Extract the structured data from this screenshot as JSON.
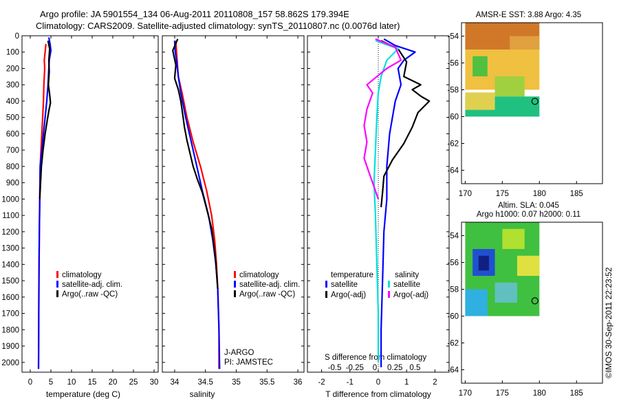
{
  "header": {
    "line1": "Argo profile: JA 5901554_134 06-Aug-2011 20110808_157 58.862S 179.394E",
    "line2": "Climatology: CARS2009. Satellite-adjusted climatology: synTS_20110807.nc (0.0076d later)"
  },
  "depth_ticks": [
    0,
    100,
    200,
    300,
    400,
    500,
    600,
    700,
    800,
    900,
    1000,
    1100,
    1200,
    1300,
    1400,
    1500,
    1600,
    1700,
    1800,
    1900,
    2000
  ],
  "chart_data": [
    {
      "type": "line",
      "xlabel": "temperature (deg C)",
      "xlim": [
        -2,
        31
      ],
      "ylim": [
        2060,
        0
      ],
      "xticks": [
        0,
        5,
        10,
        15,
        20,
        25,
        30
      ],
      "legend": {
        "placement": "lower-center",
        "entries": [
          "climatology",
          "satellite-adj. clim.",
          "Argo(..raw -QC)"
        ]
      },
      "series": [
        {
          "name": "climatology",
          "color": "#ff0000",
          "x": [
            3.8,
            3.6,
            3.4,
            3.5,
            3.3,
            3.2,
            3.0,
            2.8,
            2.6,
            2.4,
            2.3,
            2.2,
            2.1,
            2.05,
            2.0
          ],
          "y": [
            50,
            100,
            150,
            200,
            300,
            400,
            500,
            600,
            700,
            800,
            1000,
            1200,
            1500,
            1800,
            2040
          ]
        },
        {
          "name": "satellite-adj. clim.",
          "color": "#0000ff",
          "x": [
            4.5,
            4.8,
            5.0,
            4.6,
            4.5,
            4.3,
            4.0,
            3.6,
            3.2,
            2.8,
            2.4,
            2.3,
            2.2,
            2.1,
            2.05,
            2.0
          ],
          "y": [
            10,
            50,
            90,
            150,
            200,
            300,
            400,
            500,
            600,
            700,
            800,
            1000,
            1200,
            1500,
            1800,
            2040
          ]
        },
        {
          "name": "Argo(..raw -QC)",
          "color": "#000000",
          "x": [
            4.3,
            4.7,
            4.5,
            4.6,
            4.4,
            4.7,
            4.9,
            4.5,
            4.1,
            3.6,
            3.1,
            2.7,
            2.5,
            2.3
          ],
          "y": [
            30,
            80,
            150,
            220,
            300,
            360,
            410,
            460,
            520,
            600,
            700,
            800,
            900,
            1000
          ]
        }
      ]
    },
    {
      "type": "line",
      "xlabel": "salinity",
      "xlim": [
        33.8,
        36.1
      ],
      "ylim": [
        2060,
        0
      ],
      "xticks": [
        34,
        34.5,
        35,
        35.5,
        36
      ],
      "xtick_labels": [
        "34",
        "34.5",
        "35",
        "35.5",
        "36"
      ],
      "legend": {
        "placement": "lower-center",
        "entries": [
          "climatology",
          "satellite-adj. clim.",
          "Argo(..raw -QC)"
        ]
      },
      "annotations": [
        "J-ARGO",
        "PI: JAMSTEC"
      ],
      "series": [
        {
          "name": "climatology",
          "color": "#ff0000",
          "x": [
            34.02,
            34.03,
            34.04,
            34.06,
            34.12,
            34.2,
            34.3,
            34.42,
            34.52,
            34.6,
            34.65,
            34.68,
            34.7,
            34.72,
            34.72
          ],
          "y": [
            30,
            100,
            150,
            250,
            350,
            500,
            650,
            800,
            950,
            1100,
            1250,
            1400,
            1550,
            1800,
            2040
          ]
        },
        {
          "name": "satellite-adj. clim.",
          "color": "#0000ff",
          "x": [
            34.0,
            34.01,
            34.03,
            34.06,
            34.1,
            34.18,
            34.27,
            34.36,
            34.45,
            34.55,
            34.62,
            34.67,
            34.7,
            34.72,
            34.73
          ],
          "y": [
            30,
            100,
            150,
            250,
            350,
            500,
            650,
            800,
            950,
            1100,
            1250,
            1400,
            1550,
            1800,
            2040
          ]
        },
        {
          "name": "Argo(..raw -QC)",
          "color": "#000000",
          "x": [
            34.05,
            33.97,
            34.02,
            34.0,
            34.06,
            34.1,
            34.13,
            34.16,
            34.2,
            34.25,
            34.3,
            34.37,
            34.45,
            34.52,
            34.6,
            34.66,
            34.7
          ],
          "y": [
            20,
            90,
            180,
            260,
            330,
            400,
            480,
            560,
            640,
            720,
            800,
            880,
            960,
            1060,
            1180,
            1350,
            1550
          ]
        }
      ]
    },
    {
      "type": "line",
      "xlabel": "T difference from climatology",
      "secondary_xlabel": "S difference from climatology",
      "xlim": [
        -2.5,
        2.5
      ],
      "ylim": [
        2060,
        0
      ],
      "xticks": [
        -2,
        -1,
        0,
        1,
        2
      ],
      "secondary_xticks": [
        -0.5,
        -0.25,
        0,
        0.25,
        0.5
      ],
      "secondary_xtick_labels": [
        "-0.5",
        "-0.25",
        "0",
        "0.25",
        "0.5"
      ],
      "legend": {
        "placement": "lower-center",
        "headings": [
          "temperature",
          "salinity"
        ],
        "entries": [
          "satellite",
          "Argo(-adj)",
          "satellite",
          "Argo(-adj)"
        ]
      },
      "series": [
        {
          "name": "satellite",
          "group": "temperature",
          "color": "#0000ff",
          "x": [
            0.2,
            0.6,
            1.3,
            0.9,
            0.7,
            0.8,
            0.6,
            0.5,
            0.4,
            0.3,
            0.3,
            0.2,
            0.15,
            0.1,
            0.1
          ],
          "y": [
            20,
            60,
            100,
            150,
            200,
            300,
            400,
            500,
            600,
            800,
            1000,
            1200,
            1500,
            1800,
            2030
          ]
        },
        {
          "name": "Argo(-adj)",
          "group": "temperature",
          "color": "#000000",
          "x": [
            0.1,
            0.7,
            1.0,
            0.9,
            1.5,
            1.2,
            1.5,
            1.8,
            1.4,
            1.2,
            0.9,
            0.5,
            0.2,
            0.15,
            0.1
          ],
          "y": [
            30,
            80,
            160,
            250,
            300,
            330,
            370,
            400,
            470,
            560,
            660,
            760,
            860,
            960,
            1050
          ]
        },
        {
          "name": "satellite",
          "group": "salinity",
          "color": "#00e0e0",
          "x": [
            -0.1,
            0.7,
            0.3,
            0.1,
            0.0,
            -0.05,
            -0.1,
            -0.15,
            -0.1,
            -0.05,
            0.0,
            0.0
          ],
          "y": [
            30,
            80,
            150,
            250,
            350,
            500,
            700,
            900,
            1100,
            1400,
            1700,
            2000
          ]
        },
        {
          "name": "Argo(-adj)",
          "group": "salinity",
          "color": "#ff00ff",
          "x": [
            -0.1,
            0.6,
            0.8,
            0.3,
            -0.4,
            -0.2,
            -0.4,
            -0.5,
            -0.4,
            -0.5,
            -0.3,
            -0.2,
            -0.1,
            0.0
          ],
          "y": [
            20,
            70,
            150,
            200,
            300,
            350,
            450,
            550,
            650,
            750,
            850,
            900,
            950,
            1000
          ]
        }
      ]
    }
  ],
  "maps": [
    {
      "title": "AMSR-E SST: 3.88  Argo: 4.35",
      "title_lines": [
        "AMSR-E SST: 3.88  Argo: 4.35"
      ],
      "xlim": [
        169.5,
        188.5
      ],
      "ylim": [
        -65,
        -53
      ],
      "xticks": [
        170,
        175,
        180,
        185
      ],
      "yticks": [
        -54,
        -56,
        -58,
        -60,
        -62,
        -64
      ],
      "marker": {
        "lon": 179.394,
        "lat": -58.862
      },
      "patches": [
        {
          "lon0": 170,
          "lon1": 180,
          "lat0": -53,
          "lat1": -55,
          "color": "#d07828"
        },
        {
          "lon0": 170,
          "lon1": 180,
          "lat0": -55,
          "lat1": -58,
          "color": "#f0c040"
        },
        {
          "lon0": 171,
          "lon1": 173,
          "lat0": -55.5,
          "lat1": -57,
          "color": "#50c040"
        },
        {
          "lon0": 174,
          "lon1": 178,
          "lat0": -57,
          "lat1": -58.5,
          "color": "#a0d040"
        },
        {
          "lon0": 170,
          "lon1": 180,
          "lat0": -58.5,
          "lat1": -60,
          "color": "#20c080"
        },
        {
          "lon0": 170,
          "lon1": 174,
          "lat0": -58.2,
          "lat1": -59.5,
          "color": "#e0d050"
        },
        {
          "lon0": 176,
          "lon1": 180,
          "lat0": -54,
          "lat1": -55,
          "color": "#e0a040"
        }
      ]
    },
    {
      "title": "Altim. SLA: 0.045",
      "title_lines": [
        "Altim. SLA: 0.045",
        "Argo h1000: 0.07 h2000: 0.11"
      ],
      "xlim": [
        169.5,
        188.5
      ],
      "ylim": [
        -65,
        -53
      ],
      "xticks": [
        170,
        175,
        180,
        185
      ],
      "yticks": [
        -54,
        -56,
        -58,
        -60,
        -62,
        -64
      ],
      "marker": {
        "lon": 179.394,
        "lat": -58.862
      },
      "patches": [
        {
          "lon0": 170,
          "lon1": 180,
          "lat0": -53,
          "lat1": -60,
          "color": "#40c040"
        },
        {
          "lon0": 171,
          "lon1": 174,
          "lat0": -55,
          "lat1": -57,
          "color": "#2050d0"
        },
        {
          "lon0": 171.8,
          "lon1": 173.2,
          "lat0": -55.5,
          "lat1": -56.6,
          "color": "#102080"
        },
        {
          "lon0": 175,
          "lon1": 178,
          "lat0": -53.5,
          "lat1": -55,
          "color": "#b0e030"
        },
        {
          "lon0": 170,
          "lon1": 173,
          "lat0": -58,
          "lat1": -60,
          "color": "#30b0e0"
        },
        {
          "lon0": 174,
          "lon1": 177,
          "lat0": -57.5,
          "lat1": -59,
          "color": "#60c0c0"
        },
        {
          "lon0": 177,
          "lon1": 180,
          "lat0": -55.5,
          "lat1": -57,
          "color": "#e0e040"
        }
      ]
    }
  ],
  "footer_stamp": "©IMOS 30-Sep-2011 22:23:52"
}
